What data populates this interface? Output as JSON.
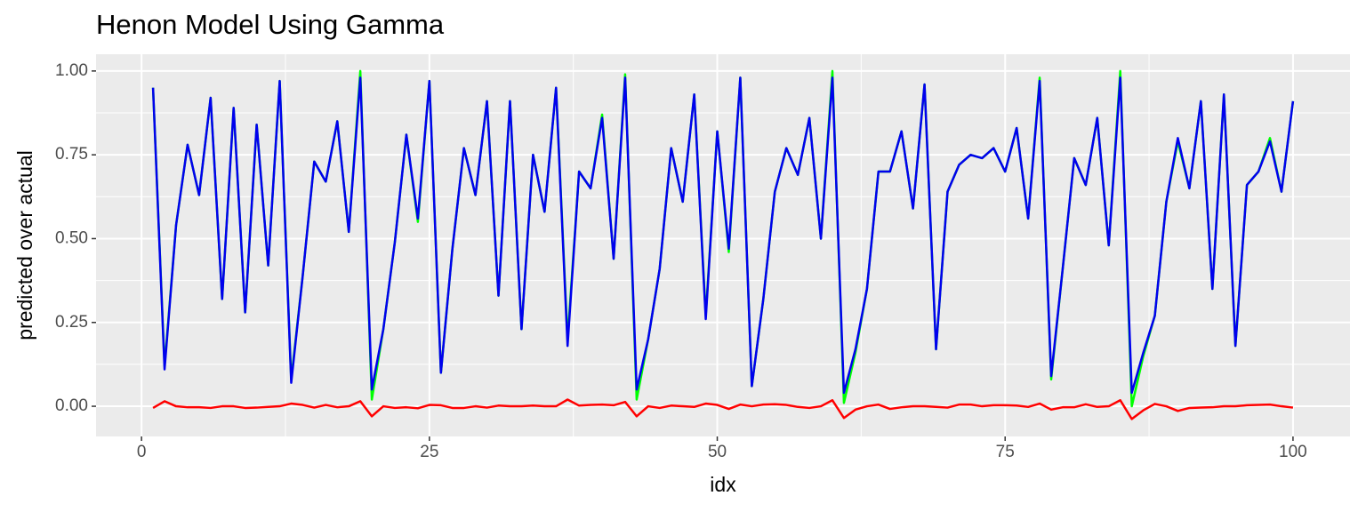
{
  "chart_data": {
    "type": "line",
    "title": "Henon Model Using Gamma",
    "xlabel": "idx",
    "ylabel": "predicted over actual",
    "x": [
      1,
      2,
      3,
      4,
      5,
      6,
      7,
      8,
      9,
      10,
      11,
      12,
      13,
      14,
      15,
      16,
      17,
      18,
      19,
      20,
      21,
      22,
      23,
      24,
      25,
      26,
      27,
      28,
      29,
      30,
      31,
      32,
      33,
      34,
      35,
      36,
      37,
      38,
      39,
      40,
      41,
      42,
      43,
      44,
      45,
      46,
      47,
      48,
      49,
      50,
      51,
      52,
      53,
      54,
      55,
      56,
      57,
      58,
      59,
      60,
      61,
      62,
      63,
      64,
      65,
      66,
      67,
      68,
      69,
      70,
      71,
      72,
      73,
      74,
      75,
      76,
      77,
      78,
      79,
      80,
      81,
      82,
      83,
      84,
      85,
      86,
      87,
      88,
      89,
      90,
      91,
      92,
      93,
      94,
      95,
      96,
      97,
      98,
      99,
      100
    ],
    "series": [
      {
        "color": "#00ff00",
        "values": [
          0.95,
          0.12,
          0.54,
          0.78,
          0.63,
          0.92,
          0.32,
          0.89,
          0.28,
          0.84,
          0.42,
          0.97,
          0.08,
          0.39,
          0.73,
          0.67,
          0.85,
          0.52,
          1.0,
          0.02,
          0.23,
          0.49,
          0.81,
          0.55,
          0.97,
          0.1,
          0.47,
          0.77,
          0.63,
          0.91,
          0.33,
          0.91,
          0.23,
          0.75,
          0.58,
          0.95,
          0.2,
          0.7,
          0.65,
          0.87,
          0.44,
          0.99,
          0.02,
          0.2,
          0.41,
          0.77,
          0.61,
          0.93,
          0.27,
          0.82,
          0.46,
          0.98,
          0.06,
          0.32,
          0.64,
          0.77,
          0.69,
          0.86,
          0.5,
          1.0,
          0.01,
          0.16,
          0.35,
          0.7,
          0.7,
          0.82,
          0.59,
          0.96,
          0.17,
          0.64,
          0.72,
          0.75,
          0.74,
          0.77,
          0.7,
          0.83,
          0.56,
          0.98,
          0.08,
          0.41,
          0.74,
          0.66,
          0.86,
          0.48,
          1.0,
          0.0,
          0.15,
          0.27,
          0.61,
          0.79,
          0.65,
          0.91,
          0.35,
          0.93,
          0.18,
          0.66,
          0.7,
          0.8,
          0.64,
          0.91
        ]
      },
      {
        "color": "#0000ee",
        "values": [
          0.95,
          0.11,
          0.54,
          0.78,
          0.63,
          0.92,
          0.32,
          0.89,
          0.28,
          0.84,
          0.42,
          0.97,
          0.07,
          0.39,
          0.73,
          0.67,
          0.85,
          0.52,
          0.98,
          0.05,
          0.23,
          0.49,
          0.81,
          0.56,
          0.97,
          0.1,
          0.47,
          0.77,
          0.63,
          0.91,
          0.33,
          0.91,
          0.23,
          0.75,
          0.58,
          0.95,
          0.18,
          0.7,
          0.65,
          0.86,
          0.44,
          0.98,
          0.05,
          0.2,
          0.41,
          0.77,
          0.61,
          0.93,
          0.26,
          0.82,
          0.47,
          0.98,
          0.06,
          0.32,
          0.64,
          0.77,
          0.69,
          0.86,
          0.5,
          0.98,
          0.04,
          0.17,
          0.35,
          0.7,
          0.7,
          0.82,
          0.59,
          0.96,
          0.17,
          0.64,
          0.72,
          0.75,
          0.74,
          0.77,
          0.7,
          0.83,
          0.56,
          0.97,
          0.09,
          0.41,
          0.74,
          0.66,
          0.86,
          0.48,
          0.98,
          0.04,
          0.16,
          0.27,
          0.61,
          0.8,
          0.65,
          0.91,
          0.35,
          0.93,
          0.18,
          0.66,
          0.7,
          0.79,
          0.64,
          0.91
        ]
      },
      {
        "color": "#ff0000",
        "values": [
          -0.005,
          0.015,
          0,
          -0.003,
          -0.003,
          -0.005,
          0,
          0,
          -0.005,
          -0.004,
          -0.002,
          0,
          0.008,
          0.004,
          -0.004,
          0.004,
          -0.003,
          0,
          0.015,
          -0.03,
          0,
          -0.005,
          -0.003,
          -0.006,
          0.004,
          0.003,
          -0.005,
          -0.005,
          0,
          -0.004,
          0.002,
          0,
          0,
          0.002,
          0,
          0,
          0.02,
          0.002,
          0.004,
          0.005,
          0.003,
          0.013,
          -0.03,
          0,
          -0.005,
          0.002,
          0,
          -0.002,
          0.008,
          0.004,
          -0.008,
          0.005,
          0,
          0.005,
          0.006,
          0.004,
          -0.002,
          -0.005,
          0,
          0.018,
          -0.035,
          -0.01,
          0,
          0.005,
          -0.008,
          -0.003,
          0,
          0,
          -0.002,
          -0.004,
          0.005,
          0.005,
          0,
          0.003,
          0.003,
          0.002,
          -0.002,
          0.008,
          -0.01,
          -0.003,
          -0.003,
          0.006,
          -0.002,
          0,
          0.018,
          -0.038,
          -0.012,
          0.007,
          0,
          -0.014,
          -0.005,
          -0.004,
          -0.003,
          0,
          0,
          0.003,
          0.004,
          0.005,
          0,
          -0.004
        ]
      }
    ],
    "xlim": [
      -3.95,
      104.95
    ],
    "ylim": [
      -0.09,
      1.05
    ],
    "xticks": [
      0,
      25,
      50,
      75,
      100
    ],
    "yticks": [
      {
        "value": 0,
        "label": "0.00"
      },
      {
        "value": 0.25,
        "label": "0.25"
      },
      {
        "value": 0.5,
        "label": "0.50"
      },
      {
        "value": 0.75,
        "label": "0.75"
      },
      {
        "value": 1,
        "label": "1.00"
      }
    ],
    "xminor": [
      12.5,
      37.5,
      62.5,
      87.5
    ],
    "yminor": [
      0.125,
      0.375,
      0.625,
      0.875
    ],
    "grid": true
  }
}
